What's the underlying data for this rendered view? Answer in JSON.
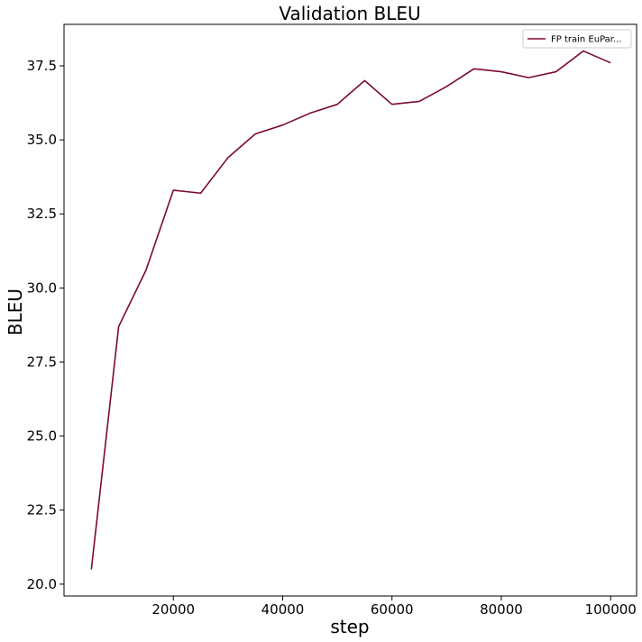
{
  "chart_data": {
    "type": "line",
    "title": "Validation BLEU",
    "xlabel": "step",
    "ylabel": "BLEU",
    "xlim": [
      0,
      104750
    ],
    "ylim": [
      19.6,
      38.9
    ],
    "x_ticks": [
      20000,
      40000,
      60000,
      80000,
      100000
    ],
    "x_tick_labels": [
      "20000",
      "40000",
      "60000",
      "80000",
      "100000"
    ],
    "y_ticks": [
      20.0,
      22.5,
      25.0,
      27.5,
      30.0,
      32.5,
      35.0,
      37.5
    ],
    "y_tick_labels": [
      "20.0",
      "22.5",
      "25.0",
      "27.5",
      "30.0",
      "32.5",
      "35.0",
      "37.5"
    ],
    "grid": false,
    "legend_position": "top-right",
    "series": [
      {
        "name": "FP train EuPar...",
        "color": "#7b0a2e",
        "x": [
          5000,
          10000,
          15000,
          20000,
          25000,
          30000,
          35000,
          40000,
          45000,
          50000,
          55000,
          60000,
          65000,
          70000,
          75000,
          80000,
          85000,
          90000,
          95000,
          100000
        ],
        "y": [
          20.5,
          28.7,
          30.6,
          33.3,
          33.2,
          34.4,
          35.2,
          35.5,
          35.9,
          36.2,
          37.0,
          36.2,
          36.3,
          36.8,
          37.4,
          37.3,
          37.1,
          37.3,
          38.0,
          37.6
        ]
      }
    ]
  }
}
